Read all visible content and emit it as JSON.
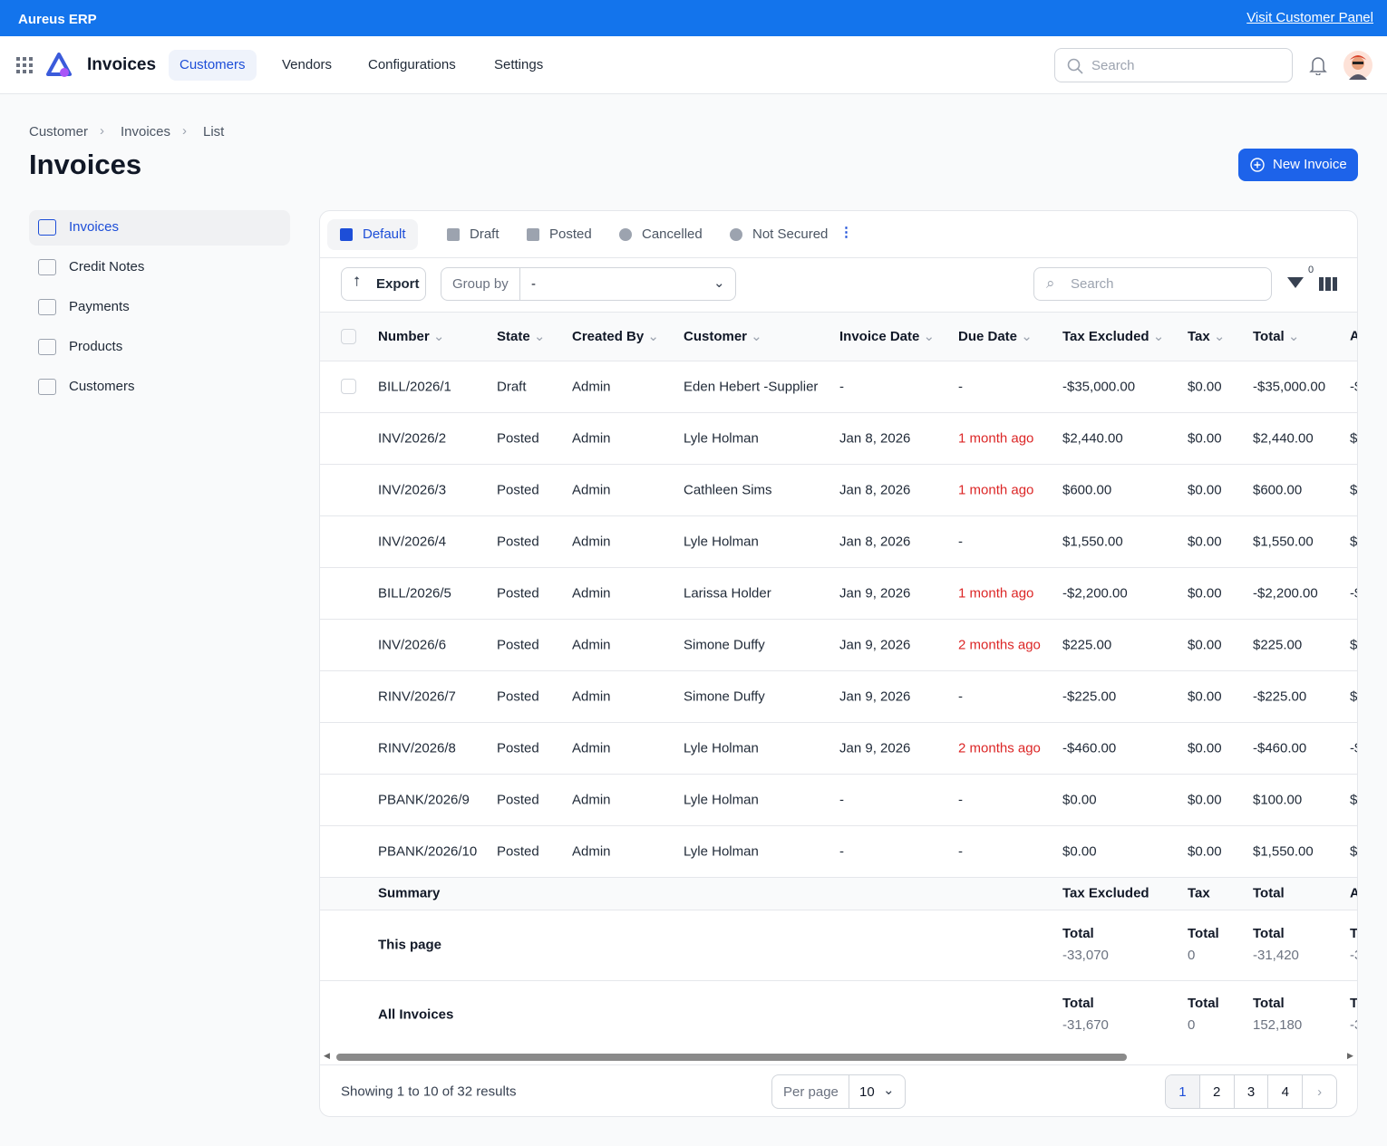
{
  "banner": {
    "brand": "Aureus ERP",
    "link": "Visit Customer Panel"
  },
  "nav": {
    "app": "Invoices",
    "items": [
      "Customers",
      "Vendors",
      "Configurations",
      "Settings"
    ],
    "active": 0,
    "search": "Search"
  },
  "breadcrumb": [
    "Customer",
    "Invoices",
    "List"
  ],
  "title": "Invoices",
  "new_button": "New Invoice",
  "sidebar": {
    "items": [
      "Invoices",
      "Credit Notes",
      "Payments",
      "Products",
      "Customers"
    ],
    "active": 0
  },
  "tabs": {
    "items": [
      "Default",
      "Draft",
      "Posted",
      "Cancelled",
      "Not Secured"
    ],
    "active": 0
  },
  "toolbar": {
    "export": "Export",
    "group_by": "Group by",
    "group_value": "-",
    "search": "Search",
    "filter_count": "0"
  },
  "table": {
    "columns": [
      "Number",
      "State",
      "Created By",
      "Customer",
      "Invoice Date",
      "Due Date",
      "Tax Excluded",
      "Tax",
      "Total",
      "A"
    ],
    "rows": [
      [
        "BILL/2026/1",
        "Draft",
        "Admin",
        "Eden Hebert -Supplier",
        "-",
        "-",
        "-$35,000.00",
        "$0.00",
        "-$35,000.00",
        "-$"
      ],
      [
        "INV/2026/2",
        "Posted",
        "Admin",
        "Lyle Holman",
        "Jan 8, 2026",
        "1 month ago",
        "$2,440.00",
        "$0.00",
        "$2,440.00",
        "$"
      ],
      [
        "INV/2026/3",
        "Posted",
        "Admin",
        "Cathleen Sims",
        "Jan 8, 2026",
        "1 month ago",
        "$600.00",
        "$0.00",
        "$600.00",
        "$"
      ],
      [
        "INV/2026/4",
        "Posted",
        "Admin",
        "Lyle Holman",
        "Jan 8, 2026",
        "-",
        "$1,550.00",
        "$0.00",
        "$1,550.00",
        "$"
      ],
      [
        "BILL/2026/5",
        "Posted",
        "Admin",
        "Larissa Holder",
        "Jan 9, 2026",
        "1 month ago",
        "-$2,200.00",
        "$0.00",
        "-$2,200.00",
        "-$"
      ],
      [
        "INV/2026/6",
        "Posted",
        "Admin",
        "Simone Duffy",
        "Jan 9, 2026",
        "2 months ago",
        "$225.00",
        "$0.00",
        "$225.00",
        "$"
      ],
      [
        "RINV/2026/7",
        "Posted",
        "Admin",
        "Simone Duffy",
        "Jan 9, 2026",
        "-",
        "-$225.00",
        "$0.00",
        "-$225.00",
        "$"
      ],
      [
        "RINV/2026/8",
        "Posted",
        "Admin",
        "Lyle Holman",
        "Jan 9, 2026",
        "2 months ago",
        "-$460.00",
        "$0.00",
        "-$460.00",
        "-$"
      ],
      [
        "PBANK/2026/9",
        "Posted",
        "Admin",
        "Lyle Holman",
        "-",
        "-",
        "$0.00",
        "$0.00",
        "$100.00",
        "$"
      ],
      [
        "PBANK/2026/10",
        "Posted",
        "Admin",
        "Lyle Holman",
        "-",
        "-",
        "$0.00",
        "$0.00",
        "$1,550.00",
        "$"
      ]
    ],
    "overdue": [
      false,
      true,
      true,
      false,
      true,
      true,
      false,
      true,
      false,
      false
    ]
  },
  "summary": {
    "label": "Summary",
    "columns": [
      "Tax Excluded",
      "Tax",
      "Total",
      "A"
    ],
    "rows": [
      {
        "label": "This page",
        "cells": [
          {
            "label": "Total",
            "value": "-33,070"
          },
          {
            "label": "Total",
            "value": "0"
          },
          {
            "label": "Total",
            "value": "-31,420"
          },
          {
            "label": "To",
            "value": "-3"
          }
        ]
      },
      {
        "label": "All Invoices",
        "cells": [
          {
            "label": "Total",
            "value": "-31,670"
          },
          {
            "label": "Total",
            "value": "0"
          },
          {
            "label": "Total",
            "value": "152,180"
          },
          {
            "label": "T",
            "value": "-3"
          }
        ]
      }
    ]
  },
  "footer": {
    "showing": "Showing 1 to 10 of 32 results",
    "per_page_label": "Per page",
    "per_page": "10",
    "pages": [
      "1",
      "2",
      "3",
      "4"
    ],
    "active_page": 0
  }
}
